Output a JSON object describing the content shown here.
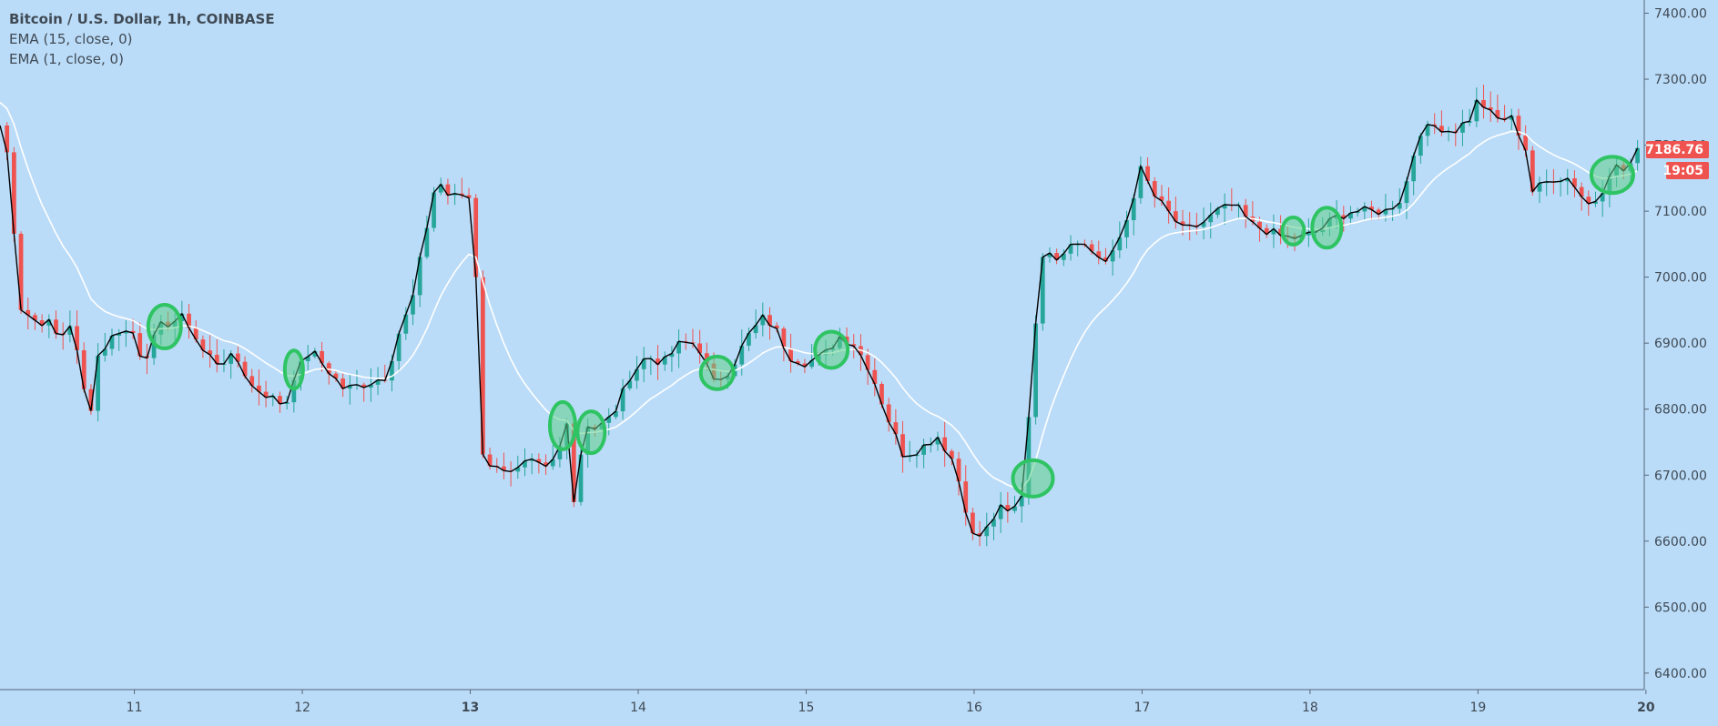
{
  "legend": {
    "title": "Bitcoin / U.S. Dollar, 1h, COINBASE",
    "ema15": "EMA (15, close, 0)",
    "ema1": "EMA (1, close, 0)"
  },
  "colors": {
    "background": "#bbdcf8",
    "up": "#26a69a",
    "down": "#ef5350",
    "ema15_line": "#ffffff",
    "ema1_line": "#000000",
    "highlight_fill": "#5ed08a",
    "highlight_stroke": "#2fc463",
    "price_badge": "#ef5350",
    "axis_text": "#3f4a55"
  },
  "price_label": {
    "value": "7186.76",
    "countdown": "19:05"
  },
  "chart_data": {
    "type": "candlestick",
    "symbol": "Bitcoin / U.S. Dollar",
    "timeframe": "1h",
    "exchange": "COINBASE",
    "ylim": [
      6375,
      7420
    ],
    "y_ticks": [
      "7400.00",
      "7300.00",
      "7200.00",
      "7100.00",
      "7000.00",
      "6900.00",
      "6800.00",
      "6700.00",
      "6600.00",
      "6500.00",
      "6400.00"
    ],
    "xlim": [
      10.2,
      19.99
    ],
    "x_ticks": [
      {
        "label": "11",
        "day": 11,
        "bold": false
      },
      {
        "label": "12",
        "day": 12,
        "bold": false
      },
      {
        "label": "13",
        "day": 13,
        "bold": true
      },
      {
        "label": "14",
        "day": 14,
        "bold": false
      },
      {
        "label": "15",
        "day": 15,
        "bold": false
      },
      {
        "label": "16",
        "day": 16,
        "bold": false
      },
      {
        "label": "17",
        "day": 17,
        "bold": false
      },
      {
        "label": "18",
        "day": 18,
        "bold": false
      },
      {
        "label": "19",
        "day": 19,
        "bold": false
      },
      {
        "label": "20",
        "day": 20,
        "bold": true
      }
    ],
    "close_anchors": [
      [
        10.2,
        7230
      ],
      [
        10.27,
        7160
      ],
      [
        10.3,
        6960
      ],
      [
        10.4,
        6935
      ],
      [
        10.5,
        6930
      ],
      [
        10.55,
        6905
      ],
      [
        10.62,
        6930
      ],
      [
        10.68,
        6860
      ],
      [
        10.73,
        6780
      ],
      [
        10.78,
        6880
      ],
      [
        10.9,
        6920
      ],
      [
        11.0,
        6915
      ],
      [
        11.05,
        6870
      ],
      [
        11.15,
        6925
      ],
      [
        11.3,
        6940
      ],
      [
        11.4,
        6890
      ],
      [
        11.5,
        6870
      ],
      [
        11.6,
        6880
      ],
      [
        11.7,
        6835
      ],
      [
        11.8,
        6820
      ],
      [
        11.9,
        6805
      ],
      [
        11.95,
        6850
      ],
      [
        12.05,
        6890
      ],
      [
        12.15,
        6860
      ],
      [
        12.25,
        6830
      ],
      [
        12.4,
        6840
      ],
      [
        12.5,
        6850
      ],
      [
        12.58,
        6920
      ],
      [
        12.65,
        6960
      ],
      [
        12.72,
        7050
      ],
      [
        12.8,
        7150
      ],
      [
        12.88,
        7120
      ],
      [
        12.95,
        7125
      ],
      [
        13.0,
        7120
      ],
      [
        13.04,
        6980
      ],
      [
        13.08,
        6700
      ],
      [
        13.15,
        6720
      ],
      [
        13.25,
        6700
      ],
      [
        13.35,
        6720
      ],
      [
        13.45,
        6710
      ],
      [
        13.52,
        6730
      ],
      [
        13.58,
        6790
      ],
      [
        13.62,
        6650
      ],
      [
        13.68,
        6780
      ],
      [
        13.75,
        6770
      ],
      [
        13.85,
        6790
      ],
      [
        13.95,
        6850
      ],
      [
        14.05,
        6880
      ],
      [
        14.15,
        6870
      ],
      [
        14.25,
        6900
      ],
      [
        14.35,
        6900
      ],
      [
        14.45,
        6840
      ],
      [
        14.55,
        6860
      ],
      [
        14.65,
        6910
      ],
      [
        14.75,
        6940
      ],
      [
        14.82,
        6920
      ],
      [
        14.9,
        6880
      ],
      [
        15.0,
        6870
      ],
      [
        15.1,
        6880
      ],
      [
        15.2,
        6910
      ],
      [
        15.28,
        6900
      ],
      [
        15.38,
        6860
      ],
      [
        15.48,
        6790
      ],
      [
        15.58,
        6730
      ],
      [
        15.68,
        6740
      ],
      [
        15.78,
        6760
      ],
      [
        15.88,
        6720
      ],
      [
        15.95,
        6650
      ],
      [
        16.0,
        6600
      ],
      [
        16.08,
        6620
      ],
      [
        16.15,
        6650
      ],
      [
        16.22,
        6640
      ],
      [
        16.3,
        6680
      ],
      [
        16.35,
        6900
      ],
      [
        16.42,
        7050
      ],
      [
        16.5,
        7030
      ],
      [
        16.6,
        7060
      ],
      [
        16.7,
        7040
      ],
      [
        16.8,
        7020
      ],
      [
        16.9,
        7080
      ],
      [
        17.0,
        7170
      ],
      [
        17.05,
        7130
      ],
      [
        17.15,
        7100
      ],
      [
        17.25,
        7070
      ],
      [
        17.35,
        7080
      ],
      [
        17.45,
        7100
      ],
      [
        17.55,
        7110
      ],
      [
        17.65,
        7080
      ],
      [
        17.75,
        7070
      ],
      [
        17.85,
        7060
      ],
      [
        17.95,
        7060
      ],
      [
        18.05,
        7070
      ],
      [
        18.15,
        7090
      ],
      [
        18.25,
        7100
      ],
      [
        18.35,
        7100
      ],
      [
        18.45,
        7100
      ],
      [
        18.55,
        7120
      ],
      [
        18.65,
        7220
      ],
      [
        18.75,
        7230
      ],
      [
        18.85,
        7220
      ],
      [
        18.95,
        7240
      ],
      [
        19.0,
        7270
      ],
      [
        19.1,
        7240
      ],
      [
        19.2,
        7240
      ],
      [
        19.28,
        7200
      ],
      [
        19.32,
        7130
      ],
      [
        19.45,
        7150
      ],
      [
        19.55,
        7150
      ],
      [
        19.65,
        7110
      ],
      [
        19.72,
        7120
      ],
      [
        19.8,
        7170
      ],
      [
        19.88,
        7160
      ],
      [
        19.95,
        7190
      ],
      [
        19.99,
        7186
      ]
    ],
    "highlights": [
      {
        "day": 11.18,
        "price": 6925,
        "rx": 18,
        "ry": 24
      },
      {
        "day": 11.95,
        "price": 6860,
        "rx": 10,
        "ry": 21
      },
      {
        "day": 13.55,
        "price": 6775,
        "rx": 14,
        "ry": 26
      },
      {
        "day": 13.72,
        "price": 6765,
        "rx": 15,
        "ry": 23
      },
      {
        "day": 14.47,
        "price": 6855,
        "rx": 18,
        "ry": 18
      },
      {
        "day": 15.15,
        "price": 6890,
        "rx": 18,
        "ry": 20
      },
      {
        "day": 16.35,
        "price": 6695,
        "rx": 22,
        "ry": 20
      },
      {
        "day": 17.9,
        "price": 7070,
        "rx": 12,
        "ry": 15
      },
      {
        "day": 18.1,
        "price": 7075,
        "rx": 16,
        "ry": 22
      },
      {
        "day": 19.8,
        "price": 7155,
        "rx": 23,
        "ry": 20
      }
    ]
  }
}
